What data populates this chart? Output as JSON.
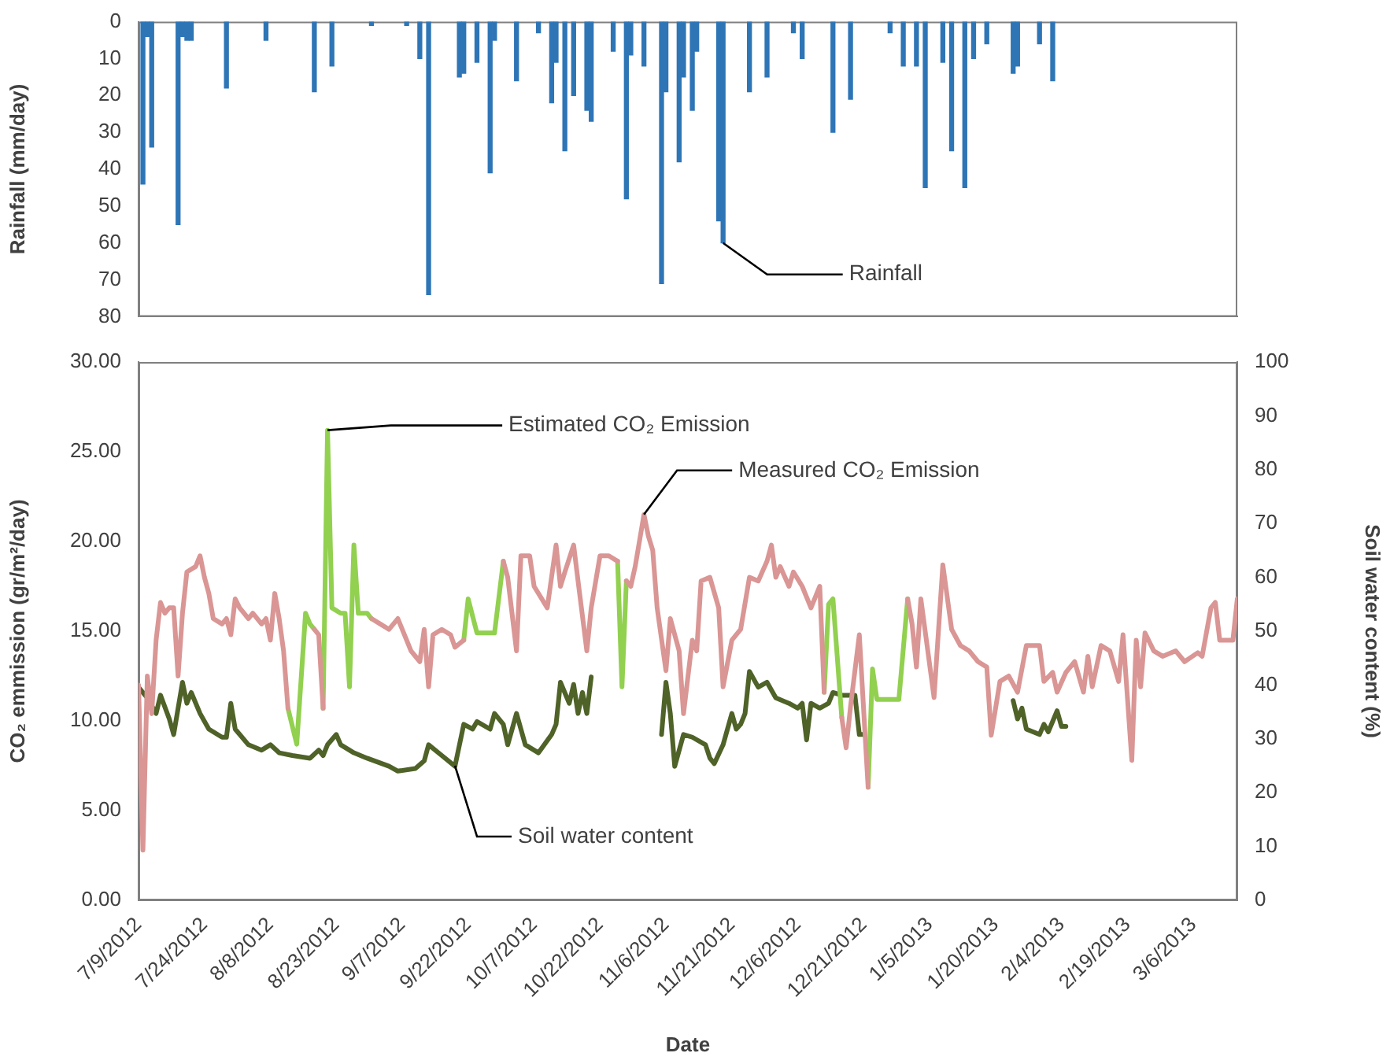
{
  "chart_data": [
    {
      "type": "bar",
      "ylabel": "Rainfall (mm/day)",
      "ylim": [
        80,
        0
      ],
      "yticks": [
        0,
        10,
        20,
        30,
        40,
        50,
        60,
        70,
        80
      ],
      "xlim": [
        "2012-07-09",
        "2013-03-16"
      ],
      "tick_labels": "y",
      "color": "#2e75b6",
      "x": [
        "2012-07-10",
        "2012-07-11",
        "2012-07-12",
        "2012-07-18",
        "2012-07-19",
        "2012-07-20",
        "2012-07-21",
        "2012-07-29",
        "2012-08-07",
        "2012-08-18",
        "2012-08-22",
        "2012-08-31",
        "2012-09-08",
        "2012-09-11",
        "2012-09-13",
        "2012-09-20",
        "2012-09-21",
        "2012-09-24",
        "2012-09-27",
        "2012-09-28",
        "2012-10-03",
        "2012-10-08",
        "2012-10-11",
        "2012-10-12",
        "2012-10-14",
        "2012-10-16",
        "2012-10-19",
        "2012-10-20",
        "2012-10-25",
        "2012-10-28",
        "2012-10-29",
        "2012-11-01",
        "2012-11-05",
        "2012-11-06",
        "2012-11-09",
        "2012-11-10",
        "2012-11-12",
        "2012-11-13",
        "2012-11-18",
        "2012-11-19",
        "2012-11-25",
        "2012-11-29",
        "2012-12-05",
        "2012-12-07",
        "2012-12-14",
        "2012-12-18",
        "2012-12-27",
        "2012-12-30",
        "2013-01-02",
        "2013-01-04",
        "2013-01-08",
        "2013-01-10",
        "2013-01-13",
        "2013-01-15",
        "2013-01-18",
        "2013-01-24",
        "2013-01-25",
        "2013-01-30",
        "2013-02-02"
      ],
      "values": [
        44,
        4,
        34,
        55,
        4,
        5,
        5,
        18,
        5,
        19,
        12,
        1,
        1,
        10,
        74,
        15,
        14,
        11,
        41,
        5,
        16,
        3,
        22,
        11,
        35,
        20,
        24,
        27,
        8,
        48,
        9,
        12,
        71,
        19,
        38,
        15,
        24,
        8,
        54,
        60,
        19,
        15,
        3,
        10,
        30,
        21,
        3,
        12,
        12,
        45,
        11,
        35,
        45,
        10,
        6,
        14,
        12,
        6,
        16
      ],
      "annotations": [
        {
          "text": "Rainfall",
          "x": "2012-11-19",
          "y": 60
        }
      ]
    },
    {
      "type": "line",
      "xlabel": "Date",
      "ylabel": "CO₂ emmission (gr/m²/day)",
      "y2label": "Soil water content (%)",
      "xlim": [
        "2012-07-09",
        "2013-03-16"
      ],
      "xticks": [
        {
          "value": "2012-07-09",
          "label": "7/9/2012"
        },
        {
          "value": "2012-07-24",
          "label": "7/24/2012"
        },
        {
          "value": "2012-08-08",
          "label": "8/8/2012"
        },
        {
          "value": "2012-08-23",
          "label": "8/23/2012"
        },
        {
          "value": "2012-09-07",
          "label": "9/7/2012"
        },
        {
          "value": "2012-09-22",
          "label": "9/22/2012"
        },
        {
          "value": "2012-10-07",
          "label": "10/7/2012"
        },
        {
          "value": "2012-10-22",
          "label": "10/22/2012"
        },
        {
          "value": "2012-11-06",
          "label": "11/6/2012"
        },
        {
          "value": "2012-11-21",
          "label": "11/21/2012"
        },
        {
          "value": "2012-12-06",
          "label": "12/6/2012"
        },
        {
          "value": "2012-12-21",
          "label": "12/21/2012"
        },
        {
          "value": "2013-01-05",
          "label": "1/5/2013"
        },
        {
          "value": "2013-01-20",
          "label": "1/20/2013"
        },
        {
          "value": "2013-02-04",
          "label": "2/4/2013"
        },
        {
          "value": "2013-02-19",
          "label": "2/19/2013"
        },
        {
          "value": "2013-03-06",
          "label": "3/6/2013"
        }
      ],
      "ylim": [
        0,
        30
      ],
      "yticks": [
        {
          "value": 0,
          "label": "0.00"
        },
        {
          "value": 5,
          "label": "5.00"
        },
        {
          "value": 10,
          "label": "10.00"
        },
        {
          "value": 15,
          "label": "15.00"
        },
        {
          "value": 20,
          "label": "20.00"
        },
        {
          "value": 25,
          "label": "25.00"
        },
        {
          "value": 30,
          "label": "30.00"
        }
      ],
      "y2lim": [
        0,
        100
      ],
      "y2ticks": [
        0,
        10,
        20,
        30,
        40,
        50,
        60,
        70,
        80,
        90,
        100
      ],
      "series": [
        {
          "color": "#d99694",
          "x": [
            "2012-07-09",
            "2012-07-10",
            "2012-07-11",
            "2012-07-12",
            "2012-07-13",
            "2012-07-14",
            "2012-07-15",
            "2012-07-16",
            "2012-07-17",
            "2012-07-18",
            "2012-07-19",
            "2012-07-20",
            "2012-07-22",
            "2012-07-23",
            "2012-07-24",
            "2012-07-25",
            "2012-07-26",
            "2012-07-28",
            "2012-07-29",
            "2012-07-30",
            "2012-07-31",
            "2012-08-01",
            "2012-08-02",
            "2012-08-03",
            "2012-08-04",
            "2012-08-06",
            "2012-08-07",
            "2012-08-08",
            "2012-08-09",
            "2012-08-10",
            "2012-08-11",
            "2012-08-12",
            "2012-08-14",
            "2012-08-18",
            "2012-08-19",
            "2012-08-20",
            "2012-08-25",
            "2012-08-31",
            "2012-09-02",
            "2012-09-04",
            "2012-09-06",
            "2012-09-08",
            "2012-09-09",
            "2012-09-11",
            "2012-09-12",
            "2012-09-13",
            "2012-09-14",
            "2012-09-16",
            "2012-09-18",
            "2012-09-19",
            "2012-09-21",
            "2012-09-25",
            "2012-09-30",
            "2012-10-01",
            "2012-10-03",
            "2012-10-04",
            "2012-10-06",
            "2012-10-07",
            "2012-10-10",
            "2012-10-12",
            "2012-10-13",
            "2012-10-14",
            "2012-10-16",
            "2012-10-17",
            "2012-10-19",
            "2012-10-20",
            "2012-10-22",
            "2012-10-24",
            "2012-10-26",
            "2012-10-27",
            "2012-10-28",
            "2012-10-29",
            "2012-10-30",
            "2012-11-01",
            "2012-11-02",
            "2012-11-03",
            "2012-11-04",
            "2012-11-06",
            "2012-11-07",
            "2012-11-09",
            "2012-11-10",
            "2012-11-12",
            "2012-11-13",
            "2012-11-14",
            "2012-11-16",
            "2012-11-18",
            "2012-11-19",
            "2012-11-21",
            "2012-11-23",
            "2012-11-25",
            "2012-11-27",
            "2012-11-29",
            "2012-11-30",
            "2012-12-01",
            "2012-12-02",
            "2012-12-04",
            "2012-12-05",
            "2012-12-07",
            "2012-12-09",
            "2012-12-11",
            "2012-12-12",
            "2012-12-13",
            "2012-12-16",
            "2012-12-17",
            "2012-12-18",
            "2012-12-20",
            "2012-12-22",
            "2012-12-25",
            "2012-12-31",
            "2013-01-01",
            "2013-01-02",
            "2013-01-03",
            "2013-01-06",
            "2013-01-08",
            "2013-01-10",
            "2013-01-12",
            "2013-01-14",
            "2013-01-16",
            "2013-01-18",
            "2013-01-19",
            "2013-01-21",
            "2013-01-23",
            "2013-01-25",
            "2013-01-27",
            "2013-01-30",
            "2013-01-31",
            "2013-02-02",
            "2013-02-03",
            "2013-02-05",
            "2013-02-07",
            "2013-02-09",
            "2013-02-10",
            "2013-02-11",
            "2013-02-13",
            "2013-02-15",
            "2013-02-17",
            "2013-02-18",
            "2013-02-20",
            "2013-02-21",
            "2013-02-22",
            "2013-02-23",
            "2013-02-25",
            "2013-02-27",
            "2013-03-02",
            "2013-03-04",
            "2013-03-07",
            "2013-03-08",
            "2013-03-10",
            "2013-03-11",
            "2013-03-12",
            "2013-03-15",
            "2013-03-16"
          ],
          "values": [
            12.0,
            2.8,
            12.5,
            10.4,
            14.5,
            16.6,
            16.0,
            16.3,
            16.3,
            12.5,
            16.0,
            18.3,
            18.6,
            19.2,
            18.0,
            17.1,
            15.7,
            15.4,
            15.7,
            14.8,
            16.8,
            16.3,
            16.0,
            15.7,
            16.0,
            15.4,
            15.7,
            14.5,
            17.1,
            15.7,
            13.9,
            10.7,
            null,
            15.1,
            14.8,
            10.7,
            null,
            15.7,
            15.4,
            15.1,
            15.7,
            14.5,
            13.9,
            13.3,
            15.1,
            11.9,
            14.8,
            15.1,
            14.8,
            14.1,
            14.5,
            null,
            18.9,
            18.0,
            13.9,
            19.2,
            19.2,
            17.5,
            16.3,
            19.8,
            17.5,
            18.3,
            19.8,
            17.8,
            13.9,
            16.3,
            19.2,
            19.2,
            18.9,
            null,
            17.8,
            17.5,
            18.6,
            21.5,
            20.3,
            19.5,
            16.3,
            12.8,
            15.7,
            13.9,
            10.4,
            14.5,
            13.9,
            17.8,
            18.0,
            16.3,
            11.9,
            14.5,
            15.1,
            18.0,
            17.8,
            18.9,
            19.8,
            18.0,
            18.6,
            17.5,
            18.3,
            17.5,
            16.3,
            17.5,
            11.6,
            null,
            10.2,
            8.5,
            10.8,
            14.8,
            6.3,
            null,
            16.8,
            15.4,
            13.0,
            16.8,
            11.3,
            18.7,
            15.1,
            14.2,
            13.9,
            13.3,
            13.0,
            9.2,
            12.2,
            12.5,
            11.6,
            14.2,
            14.2,
            12.2,
            12.7,
            11.6,
            12.7,
            13.3,
            11.6,
            13.6,
            11.9,
            14.2,
            13.9,
            12.2,
            14.8,
            7.8,
            14.5,
            11.9,
            14.9,
            13.9,
            13.6,
            13.9,
            13.3,
            13.8,
            13.6,
            16.3,
            16.6,
            14.5,
            14.5,
            16.8
          ]
        },
        {
          "color": "#92d050",
          "x": [
            "2012-08-12",
            "2012-08-14",
            "2012-08-16",
            "2012-08-17",
            "2012-08-18",
            "2012-08-19",
            "2012-08-20",
            "2012-08-21",
            "2012-08-22",
            "2012-08-24",
            "2012-08-25",
            "2012-08-26",
            "2012-08-27",
            "2012-08-28",
            "2012-08-30",
            "2012-08-31",
            "2012-09-05",
            "2012-09-21",
            "2012-09-22",
            "2012-09-24",
            "2012-09-28",
            "2012-09-30",
            "2012-10-10",
            "2012-10-26",
            "2012-10-27",
            "2012-10-28",
            "2012-11-20",
            "2012-12-12",
            "2012-12-13",
            "2012-12-14",
            "2012-12-16",
            "2012-12-19",
            "2012-12-22",
            "2012-12-23",
            "2012-12-24",
            "2012-12-29",
            "2012-12-31"
          ],
          "values": [
            10.7,
            8.7,
            16.0,
            15.4,
            15.1,
            null,
            10.7,
            26.2,
            16.3,
            16.0,
            16.0,
            11.9,
            19.8,
            16.0,
            16.0,
            15.7,
            null,
            14.5,
            16.8,
            14.9,
            14.9,
            18.9,
            null,
            18.9,
            11.9,
            17.8,
            null,
            11.6,
            16.5,
            16.8,
            10.2,
            null,
            6.3,
            12.9,
            11.2,
            11.2,
            16.8
          ]
        },
        {
          "color": "#4f6228",
          "axis": "y2",
          "x": [
            "2012-07-09",
            "2012-07-11",
            "2012-07-13",
            "2012-07-14",
            "2012-07-16",
            "2012-07-17",
            "2012-07-19",
            "2012-07-20",
            "2012-07-21",
            "2012-07-23",
            "2012-07-25",
            "2012-07-28",
            "2012-07-29",
            "2012-07-30",
            "2012-07-31",
            "2012-08-03",
            "2012-08-06",
            "2012-08-08",
            "2012-08-10",
            "2012-08-13",
            "2012-08-17",
            "2012-08-19",
            "2012-08-20",
            "2012-08-21",
            "2012-08-23",
            "2012-08-24",
            "2012-08-27",
            "2012-08-30",
            "2012-09-04",
            "2012-09-06",
            "2012-09-10",
            "2012-09-12",
            "2012-09-13",
            "2012-09-16",
            "2012-09-19",
            "2012-09-21",
            "2012-09-23",
            "2012-09-24",
            "2012-09-27",
            "2012-09-28",
            "2012-09-30",
            "2012-10-01",
            "2012-10-03",
            "2012-10-05",
            "2012-10-08",
            "2012-10-11",
            "2012-10-12",
            "2012-10-13",
            "2012-10-15",
            "2012-10-16",
            "2012-10-17",
            "2012-10-18",
            "2012-10-19",
            "2012-10-20",
            "2012-10-27",
            "2012-11-05",
            "2012-11-06",
            "2012-11-07",
            "2012-11-08",
            "2012-11-10",
            "2012-11-12",
            "2012-11-15",
            "2012-11-16",
            "2012-11-17",
            "2012-11-19",
            "2012-11-21",
            "2012-11-22",
            "2012-11-23",
            "2012-11-24",
            "2012-11-25",
            "2012-11-27",
            "2012-11-29",
            "2012-12-01",
            "2012-12-04",
            "2012-12-06",
            "2012-12-07",
            "2012-12-08",
            "2012-12-09",
            "2012-12-11",
            "2012-12-13",
            "2012-12-14",
            "2012-12-16",
            "2012-12-19",
            "2012-12-20",
            "2012-12-21",
            "2013-01-05",
            "2013-01-24",
            "2013-01-25",
            "2013-01-26",
            "2013-01-27",
            "2013-01-30",
            "2013-01-31",
            "2013-02-01",
            "2013-02-03",
            "2013-02-04",
            "2013-02-05"
          ],
          "values": [
            39.6,
            37.6,
            34.7,
            38.1,
            33.7,
            30.8,
            40.5,
            36.6,
            38.6,
            34.7,
            31.8,
            30.3,
            30.3,
            36.6,
            31.8,
            28.9,
            27.9,
            28.9,
            27.4,
            26.9,
            26.4,
            27.9,
            26.9,
            28.9,
            30.8,
            28.9,
            27.4,
            26.4,
            24.9,
            24.0,
            24.5,
            25.9,
            28.9,
            26.9,
            24.9,
            32.7,
            31.8,
            33.2,
            31.8,
            34.7,
            32.7,
            28.9,
            34.7,
            28.9,
            27.4,
            30.8,
            32.7,
            40.5,
            36.6,
            40.1,
            34.7,
            38.6,
            34.7,
            41.5,
            null,
            30.8,
            40.5,
            34.7,
            24.9,
            30.8,
            30.3,
            28.9,
            26.4,
            25.4,
            28.9,
            34.7,
            31.8,
            32.7,
            34.7,
            42.5,
            39.6,
            40.5,
            37.6,
            36.6,
            35.7,
            36.6,
            29.8,
            36.6,
            35.7,
            36.6,
            38.6,
            38.1,
            38.1,
            30.8,
            30.8,
            null,
            37.1,
            33.7,
            35.7,
            31.8,
            30.8,
            32.7,
            31.3,
            35.2,
            32.3,
            32.3
          ]
        }
      ],
      "annotations": [
        {
          "text": "Estimated CO₂ Emission",
          "x": "2012-08-21",
          "y": 26.2
        },
        {
          "text": "Measured CO₂ Emission",
          "x": "2012-11-01",
          "y": 21.5
        },
        {
          "text": "Soil water content",
          "x": "2012-09-19",
          "y": 7.5
        }
      ]
    }
  ]
}
